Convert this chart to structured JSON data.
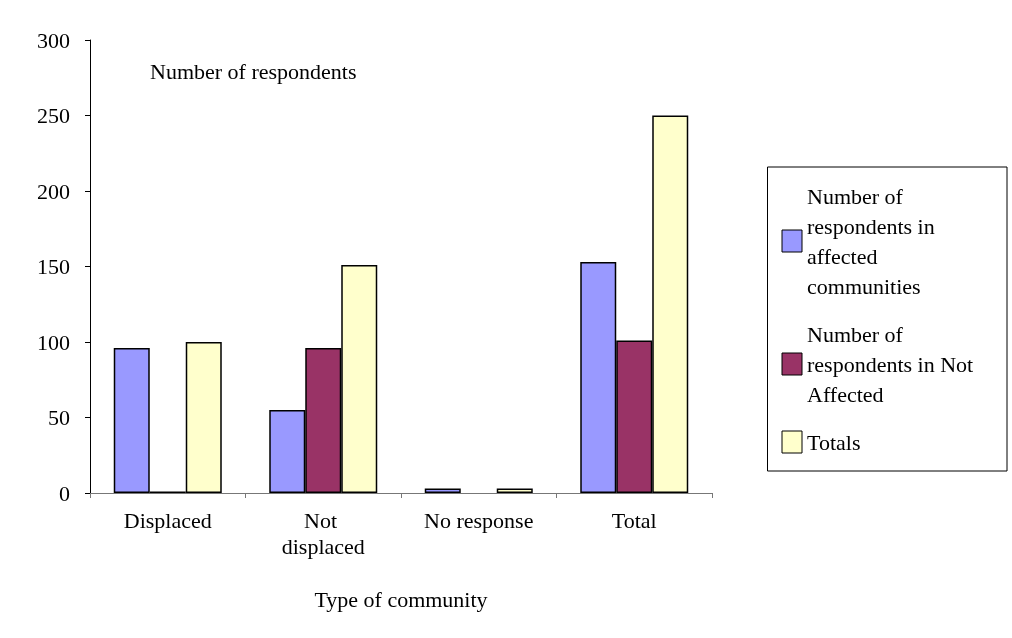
{
  "chart_data": {
    "type": "bar",
    "title": "Number of respondents",
    "xlabel": "Type of community",
    "categories": [
      "Displaced",
      "Not displaced",
      "No response",
      "Total"
    ],
    "series": [
      {
        "name": "Number of respondents in affected communities",
        "color": "#9999ff",
        "values": [
          96,
          55,
          3,
          153
        ]
      },
      {
        "name": "Number of respondents in Not Affected",
        "color": "#993366",
        "values": [
          1,
          96,
          null,
          101
        ]
      },
      {
        "name": "Totals",
        "color": "#ffffcc",
        "values": [
          100,
          151,
          3,
          250
        ]
      }
    ],
    "ylim": [
      0,
      300
    ],
    "yticks": [
      0,
      50,
      100,
      150,
      200,
      250,
      300
    ],
    "grid": false,
    "legend": "right"
  }
}
